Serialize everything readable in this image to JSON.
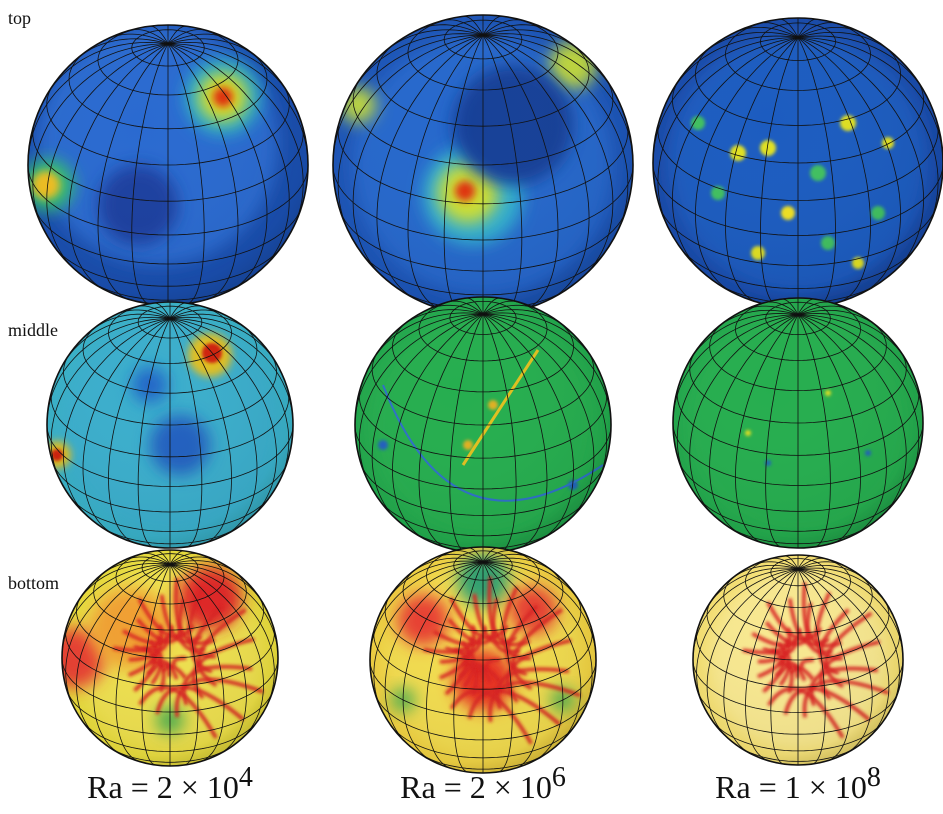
{
  "row_labels": [
    "top",
    "middle",
    "bottom"
  ],
  "column_labels": [
    {
      "base": "Ra = 2 × 10",
      "exponent": "4"
    },
    {
      "base": "Ra = 2 × 10",
      "exponent": "6"
    },
    {
      "base": "Ra = 1 × 10",
      "exponent": "8"
    }
  ]
}
